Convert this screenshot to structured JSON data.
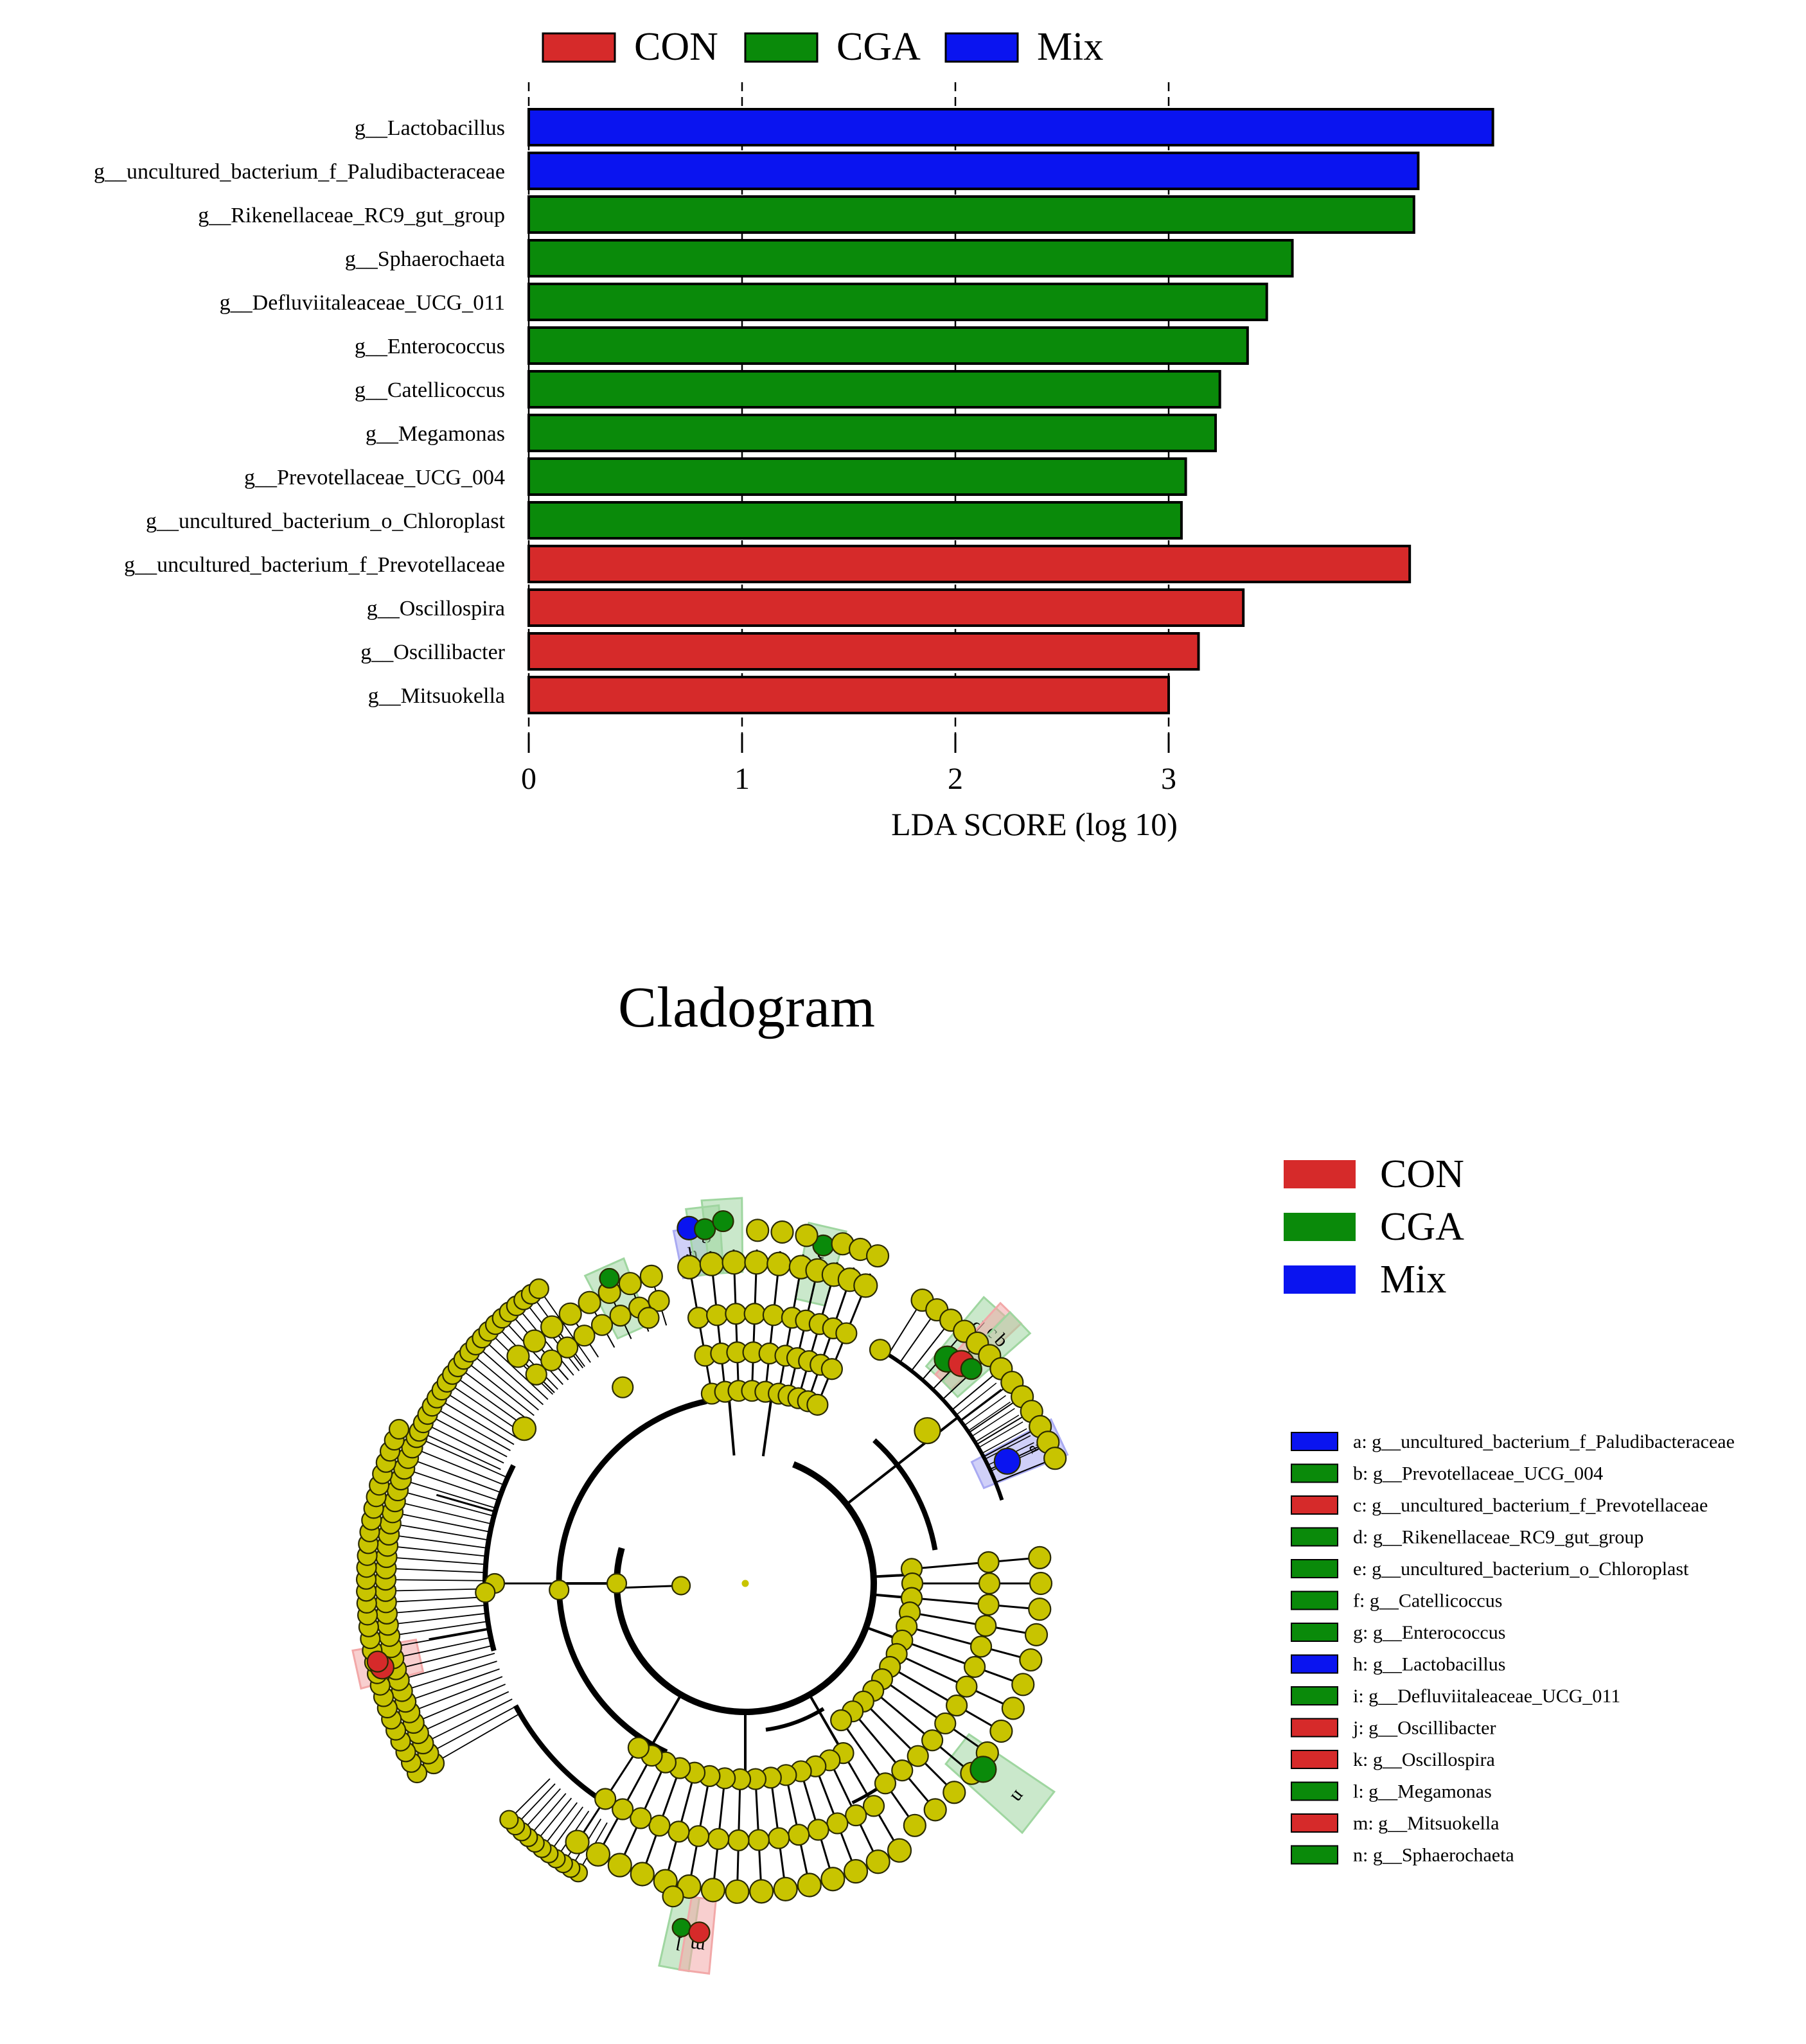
{
  "colors": {
    "CON": "#d62a2a",
    "CGA": "#0a8a0a",
    "Mix": "#0a14f0",
    "node": "#c8c400",
    "con_hl": "#f2a8a8",
    "cga_hl": "#9fd6a0",
    "mix_hl": "#a9aaf2"
  },
  "legend": [
    {
      "label": "CON",
      "group": "CON"
    },
    {
      "label": "CGA",
      "group": "CGA"
    },
    {
      "label": "Mix",
      "group": "Mix"
    }
  ],
  "chart_data": [
    {
      "type": "bar",
      "orientation": "horizontal",
      "xlabel": "LDA SCORE (log 10)",
      "ylabel": "",
      "xlim": [
        0,
        4.6
      ],
      "xticks": [
        "0",
        "1",
        "2",
        "3"
      ],
      "categories": [
        "g__Lactobacillus",
        "g__uncultured_bacterium_f_Paludibacteraceae",
        "g__Rikenellaceae_RC9_gut_group",
        "g__Sphaerochaeta",
        "g__Defluviitaleaceae_UCG_011",
        "g__Enterococcus",
        "g__Catellicoccus",
        "g__Megamonas",
        "g__Prevotellaceae_UCG_004",
        "g__uncultured_bacterium_o_Chloroplast",
        "g__uncultured_bacterium_f_Prevotellaceae",
        "g__Oscillospira",
        "g__Oscillibacter",
        "g__Mitsuokella"
      ],
      "values": [
        4.52,
        4.17,
        4.15,
        3.58,
        3.46,
        3.37,
        3.24,
        3.22,
        3.08,
        3.06,
        4.13,
        3.35,
        3.14,
        3.0
      ],
      "groups": [
        "Mix",
        "Mix",
        "CGA",
        "CGA",
        "CGA",
        "CGA",
        "CGA",
        "CGA",
        "CGA",
        "CGA",
        "CON",
        "CON",
        "CON",
        "CON"
      ]
    },
    {
      "type": "cladogram",
      "title": "Cladogram",
      "legend": [
        {
          "label": "CON",
          "group": "CON"
        },
        {
          "label": "CGA",
          "group": "CGA"
        },
        {
          "label": "Mix",
          "group": "Mix"
        }
      ],
      "taxa": [
        {
          "letter": "a",
          "label": "a: g__uncultured_bacterium_f_Paludibacteraceae",
          "group": "Mix"
        },
        {
          "letter": "b",
          "label": "b: g__Prevotellaceae_UCG_004",
          "group": "CGA"
        },
        {
          "letter": "c",
          "label": "c: g__uncultured_bacterium_f_Prevotellaceae",
          "group": "CON"
        },
        {
          "letter": "d",
          "label": "d: g__Rikenellaceae_RC9_gut_group",
          "group": "CGA"
        },
        {
          "letter": "e",
          "label": "e: g__uncultured_bacterium_o_Chloroplast",
          "group": "CGA"
        },
        {
          "letter": "f",
          "label": "f: g__Catellicoccus",
          "group": "CGA"
        },
        {
          "letter": "g",
          "label": "g: g__Enterococcus",
          "group": "CGA"
        },
        {
          "letter": "h",
          "label": "h: g__Lactobacillus",
          "group": "Mix"
        },
        {
          "letter": "i",
          "label": "i: g__Defluviitaleaceae_UCG_011",
          "group": "CGA"
        },
        {
          "letter": "j",
          "label": "j: g__Oscillibacter",
          "group": "CON"
        },
        {
          "letter": "k",
          "label": "k: g__Oscillospira",
          "group": "CON"
        },
        {
          "letter": "l",
          "label": "l: g__Megamonas",
          "group": "CGA"
        },
        {
          "letter": "m",
          "label": "m: g__Mitsuokella",
          "group": "CON"
        },
        {
          "letter": "n",
          "label": "n: g__Sphaerochaeta",
          "group": "CGA"
        }
      ]
    }
  ]
}
